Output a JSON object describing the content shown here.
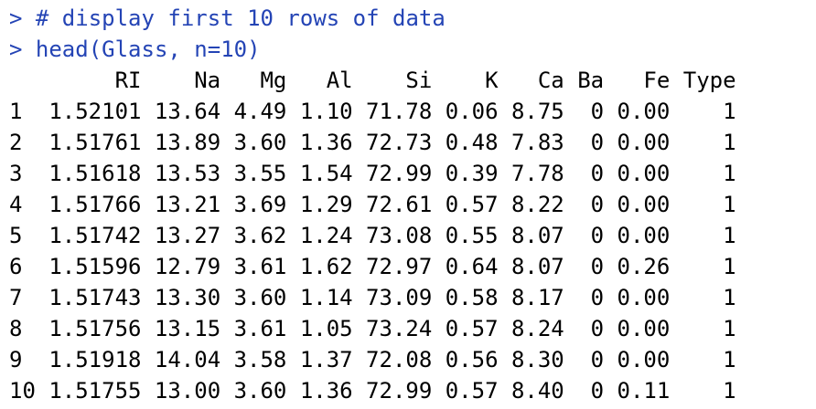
{
  "console": {
    "commands": [
      "> # display first 10 rows of data",
      "> head(Glass, n=10)"
    ],
    "table": {
      "columns": [
        "RI",
        "Na",
        "Mg",
        "Al",
        "Si",
        "K",
        "Ca",
        "Ba",
        "Fe",
        "Type"
      ],
      "rows": [
        {
          "name": "1",
          "cells": [
            "1.52101",
            "13.64",
            "4.49",
            "1.10",
            "71.78",
            "0.06",
            "8.75",
            "0",
            "0.00",
            "1"
          ]
        },
        {
          "name": "2",
          "cells": [
            "1.51761",
            "13.89",
            "3.60",
            "1.36",
            "72.73",
            "0.48",
            "7.83",
            "0",
            "0.00",
            "1"
          ]
        },
        {
          "name": "3",
          "cells": [
            "1.51618",
            "13.53",
            "3.55",
            "1.54",
            "72.99",
            "0.39",
            "7.78",
            "0",
            "0.00",
            "1"
          ]
        },
        {
          "name": "4",
          "cells": [
            "1.51766",
            "13.21",
            "3.69",
            "1.29",
            "72.61",
            "0.57",
            "8.22",
            "0",
            "0.00",
            "1"
          ]
        },
        {
          "name": "5",
          "cells": [
            "1.51742",
            "13.27",
            "3.62",
            "1.24",
            "73.08",
            "0.55",
            "8.07",
            "0",
            "0.00",
            "1"
          ]
        },
        {
          "name": "6",
          "cells": [
            "1.51596",
            "12.79",
            "3.61",
            "1.62",
            "72.97",
            "0.64",
            "8.07",
            "0",
            "0.26",
            "1"
          ]
        },
        {
          "name": "7",
          "cells": [
            "1.51743",
            "13.30",
            "3.60",
            "1.14",
            "73.09",
            "0.58",
            "8.17",
            "0",
            "0.00",
            "1"
          ]
        },
        {
          "name": "8",
          "cells": [
            "1.51756",
            "13.15",
            "3.61",
            "1.05",
            "73.24",
            "0.57",
            "8.24",
            "0",
            "0.00",
            "1"
          ]
        },
        {
          "name": "9",
          "cells": [
            "1.51918",
            "14.04",
            "3.58",
            "1.37",
            "72.08",
            "0.56",
            "8.30",
            "0",
            "0.00",
            "1"
          ]
        },
        {
          "name": "10",
          "cells": [
            "1.51755",
            "13.00",
            "3.60",
            "1.36",
            "72.99",
            "0.57",
            "8.40",
            "0",
            "0.11",
            "1"
          ]
        }
      ]
    }
  }
}
